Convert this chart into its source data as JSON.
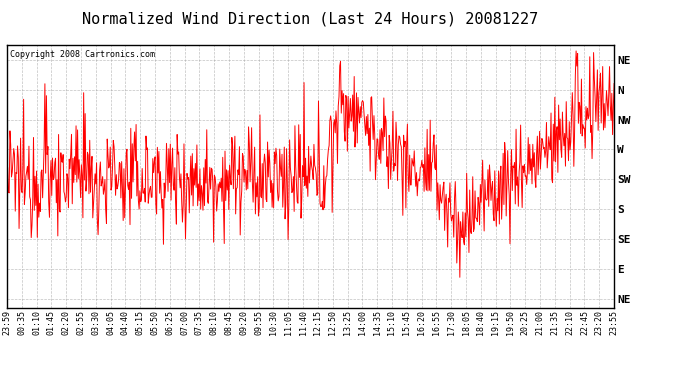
{
  "title": "Normalized Wind Direction (Last 24 Hours) 20081227",
  "copyright_text": "Copyright 2008 Cartronics.com",
  "line_color": "#FF0000",
  "background_color": "#FFFFFF",
  "plot_bg_color": "#FFFFFF",
  "grid_color": "#999999",
  "ytick_labels": [
    "NE",
    "N",
    "NW",
    "W",
    "SW",
    "S",
    "SE",
    "E",
    "NE"
  ],
  "ytick_values": [
    8,
    7,
    6,
    5,
    4,
    3,
    2,
    1,
    0
  ],
  "xtick_labels": [
    "23:59",
    "00:35",
    "01:10",
    "01:45",
    "02:20",
    "02:55",
    "03:30",
    "04:05",
    "04:40",
    "05:15",
    "05:50",
    "06:25",
    "07:00",
    "07:35",
    "08:10",
    "08:45",
    "09:20",
    "09:55",
    "10:30",
    "11:05",
    "11:40",
    "12:15",
    "12:50",
    "13:25",
    "14:00",
    "14:35",
    "15:10",
    "15:45",
    "16:20",
    "16:55",
    "17:30",
    "18:05",
    "18:40",
    "19:15",
    "19:50",
    "20:25",
    "21:00",
    "21:35",
    "22:10",
    "22:45",
    "23:20",
    "23:55"
  ],
  "ylim": [
    -0.3,
    8.5
  ],
  "ylabel_fontsize": 8,
  "xlabel_fontsize": 6,
  "title_fontsize": 11,
  "figsize": [
    6.9,
    3.75
  ],
  "dpi": 100
}
